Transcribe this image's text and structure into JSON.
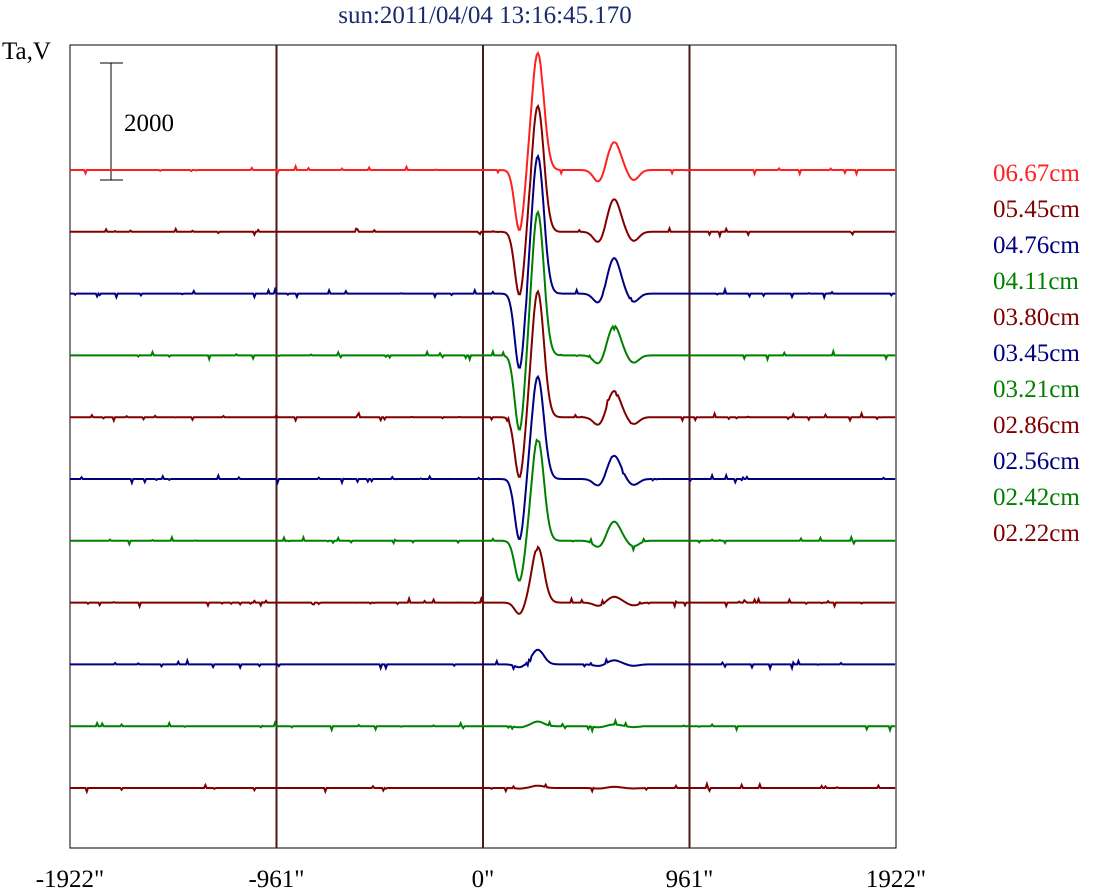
{
  "chart_data": {
    "type": "line",
    "title": "sun:2011/04/04 13:16:45.170",
    "ylabel": "Ta,V",
    "xlabel": "",
    "x_tick_labels": [
      "-1922\"",
      "-961\"",
      "0\"",
      "961\"",
      "1922\""
    ],
    "x_ticks": [
      -1922,
      -961,
      0,
      961,
      1922
    ],
    "xlim": [
      -1922,
      1922
    ],
    "vertical_reference_lines": [
      -961,
      0,
      961
    ],
    "scale_bar": {
      "label": "2000",
      "value": 2000
    },
    "grid": false,
    "legend_placement": "right",
    "series": [
      {
        "name": "06.67cm",
        "color": "#ff2020",
        "peaks": {
          "dip": -1050,
          "main": 2000,
          "secondary": 480,
          "dip2": -220
        }
      },
      {
        "name": "05.45cm",
        "color": "#800000",
        "peaks": {
          "dip": -1100,
          "main": 2150,
          "secondary": 560,
          "dip2": -200
        }
      },
      {
        "name": "04.76cm",
        "color": "#000080",
        "peaks": {
          "dip": -1300,
          "main": 2350,
          "secondary": 610,
          "dip2": -180
        }
      },
      {
        "name": "04.11cm",
        "color": "#008000",
        "peaks": {
          "dip": -1300,
          "main": 2450,
          "secondary": 510,
          "dip2": -160
        }
      },
      {
        "name": "03.80cm",
        "color": "#800000",
        "peaks": {
          "dip": -1050,
          "main": 2150,
          "secondary": 450,
          "dip2": -150
        }
      },
      {
        "name": "03.45cm",
        "color": "#000080",
        "peaks": {
          "dip": -1050,
          "main": 1750,
          "secondary": 400,
          "dip2": -130
        }
      },
      {
        "name": "03.21cm",
        "color": "#008000",
        "peaks": {
          "dip": -700,
          "main": 1750,
          "secondary": 330,
          "dip2": -120
        }
      },
      {
        "name": "02.86cm",
        "color": "#800000",
        "peaks": {
          "dip": -200,
          "main": 950,
          "secondary": 100,
          "dip2": -60
        }
      },
      {
        "name": "02.56cm",
        "color": "#000080",
        "peaks": {
          "dip": -50,
          "main": 250,
          "secondary": 70,
          "dip2": -30
        }
      },
      {
        "name": "02.42cm",
        "color": "#008000",
        "peaks": {
          "dip": -20,
          "main": 80,
          "secondary": 30,
          "dip2": -20
        }
      },
      {
        "name": "02.22cm",
        "color": "#800000",
        "peaks": {
          "dip": -10,
          "main": 40,
          "secondary": 20,
          "dip2": -10
        }
      }
    ],
    "legend_entries": [
      "06.67cm",
      "05.45cm",
      "04.76cm",
      "04.11cm",
      "03.80cm",
      "03.45cm",
      "03.21cm",
      "02.86cm",
      "02.56cm",
      "02.42cm",
      "02.22cm"
    ]
  }
}
